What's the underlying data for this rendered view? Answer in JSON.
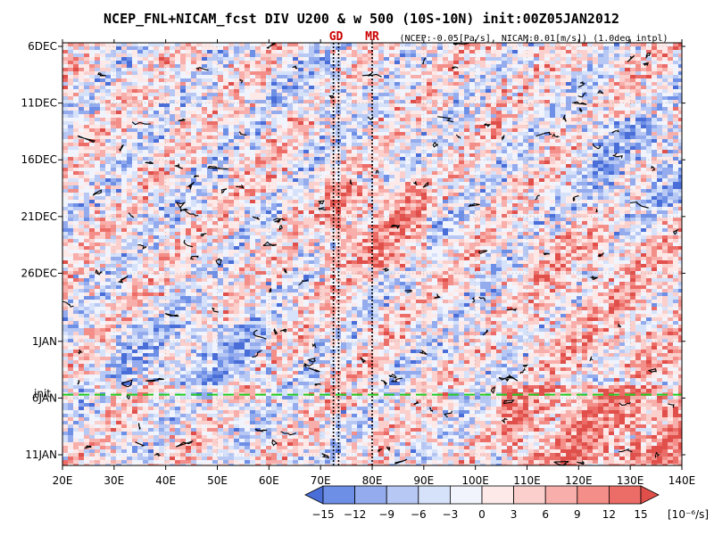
{
  "chart_data": {
    "type": "heatmap",
    "title": "NCEP_FNL+NICAM_fcst DIV U200 & w 500 (10S-10N) init:00Z05JAN2012",
    "subtitle": "(NCEP:-0.05[Pa/s], NICAM:0.01[m/s]) (1.0deg intpl)",
    "xlim": [
      20,
      140
    ],
    "x_ticks": [
      20,
      30,
      40,
      50,
      60,
      70,
      80,
      90,
      100,
      110,
      120,
      130,
      140
    ],
    "x_tick_labels": [
      "20E",
      "30E",
      "40E",
      "50E",
      "60E",
      "70E",
      "80E",
      "90E",
      "100E",
      "110E",
      "120E",
      "130E",
      "140E"
    ],
    "y_start": "2011-12-06",
    "y_end": "2012-01-11",
    "y_ticks": [
      "2011-12-06",
      "2011-12-11",
      "2011-12-16",
      "2011-12-21",
      "2011-12-26",
      "2012-01-01",
      "2012-01-06",
      "2012-01-11"
    ],
    "y_tick_labels": [
      "6DEC",
      "11DEC",
      "16DEC",
      "21DEC",
      "26DEC",
      "1JAN",
      "6JAN",
      "11JAN"
    ],
    "init_date": "2012-01-05",
    "init_label": "init",
    "markers": [
      {
        "label": "GD",
        "longitudes": [
          72.5,
          73.5
        ]
      },
      {
        "label": "MR",
        "longitudes": [
          80
        ]
      }
    ],
    "colorbar": {
      "levels": [
        -15,
        -12,
        -9,
        -6,
        -3,
        0,
        3,
        6,
        9,
        12,
        15
      ],
      "tick_labels": [
        "−15",
        "−12",
        "−9",
        "−6",
        "−3",
        "0",
        "3",
        "6",
        "9",
        "12",
        "15"
      ],
      "unit_label": "[10⁻⁶/s]",
      "colors": [
        "#4a6ed8",
        "#6e8fe6",
        "#94acee",
        "#b7c8f4",
        "#d6e1fa",
        "#f1f4fd",
        "#fde9e8",
        "#fbcfcc",
        "#f8afab",
        "#f38e88",
        "#ec6d68",
        "#e04f4a"
      ]
    },
    "grid": "dotted",
    "legend": "bottom"
  }
}
